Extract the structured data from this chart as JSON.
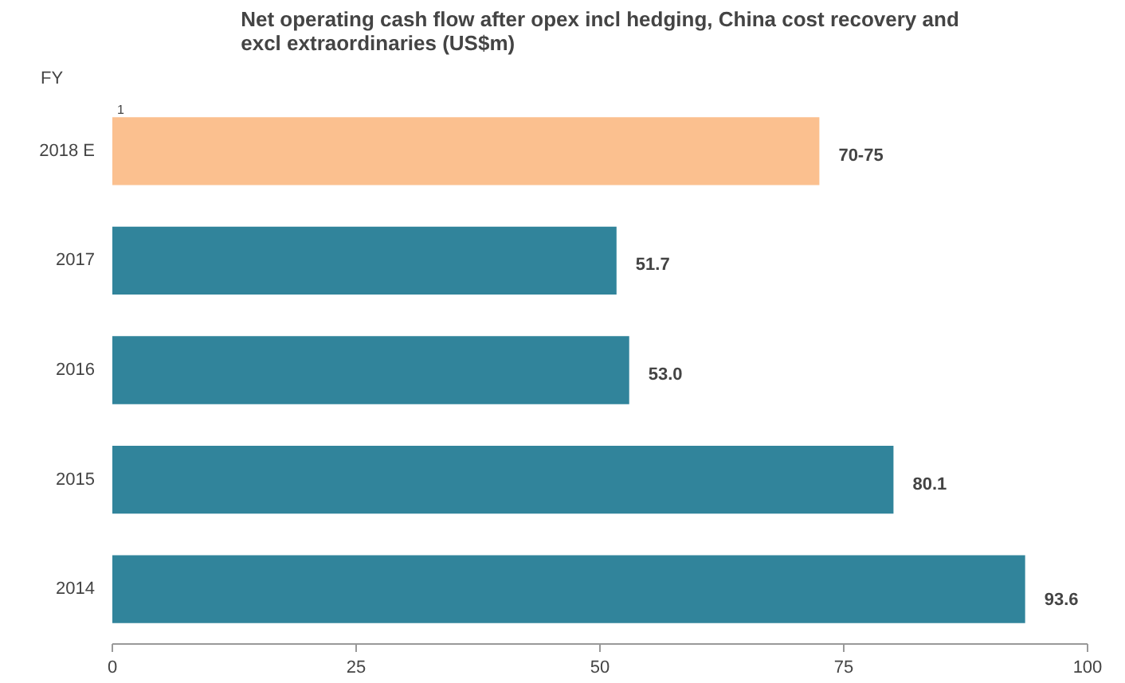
{
  "chart_data": {
    "type": "bar",
    "orientation": "horizontal",
    "title": "Net operating cash flow after opex incl hedging, China cost recovery and excl extraordinaries (US$m)",
    "ylabel": "FY",
    "categories": [
      "2018 E",
      "2017",
      "2016",
      "2015",
      "2014"
    ],
    "values": [
      72.5,
      51.7,
      53.0,
      80.1,
      93.6
    ],
    "colors": [
      "#fbc08f",
      "#31849b",
      "#31849b",
      "#31849b",
      "#31849b"
    ],
    "value_labels": [
      "70-75",
      "51.7",
      "53.0",
      "80.1",
      "93.6"
    ],
    "annotations": [
      "1"
    ],
    "xlim": [
      0,
      100
    ],
    "xticks": [
      0,
      25,
      50,
      75,
      100
    ],
    "grid": false
  }
}
